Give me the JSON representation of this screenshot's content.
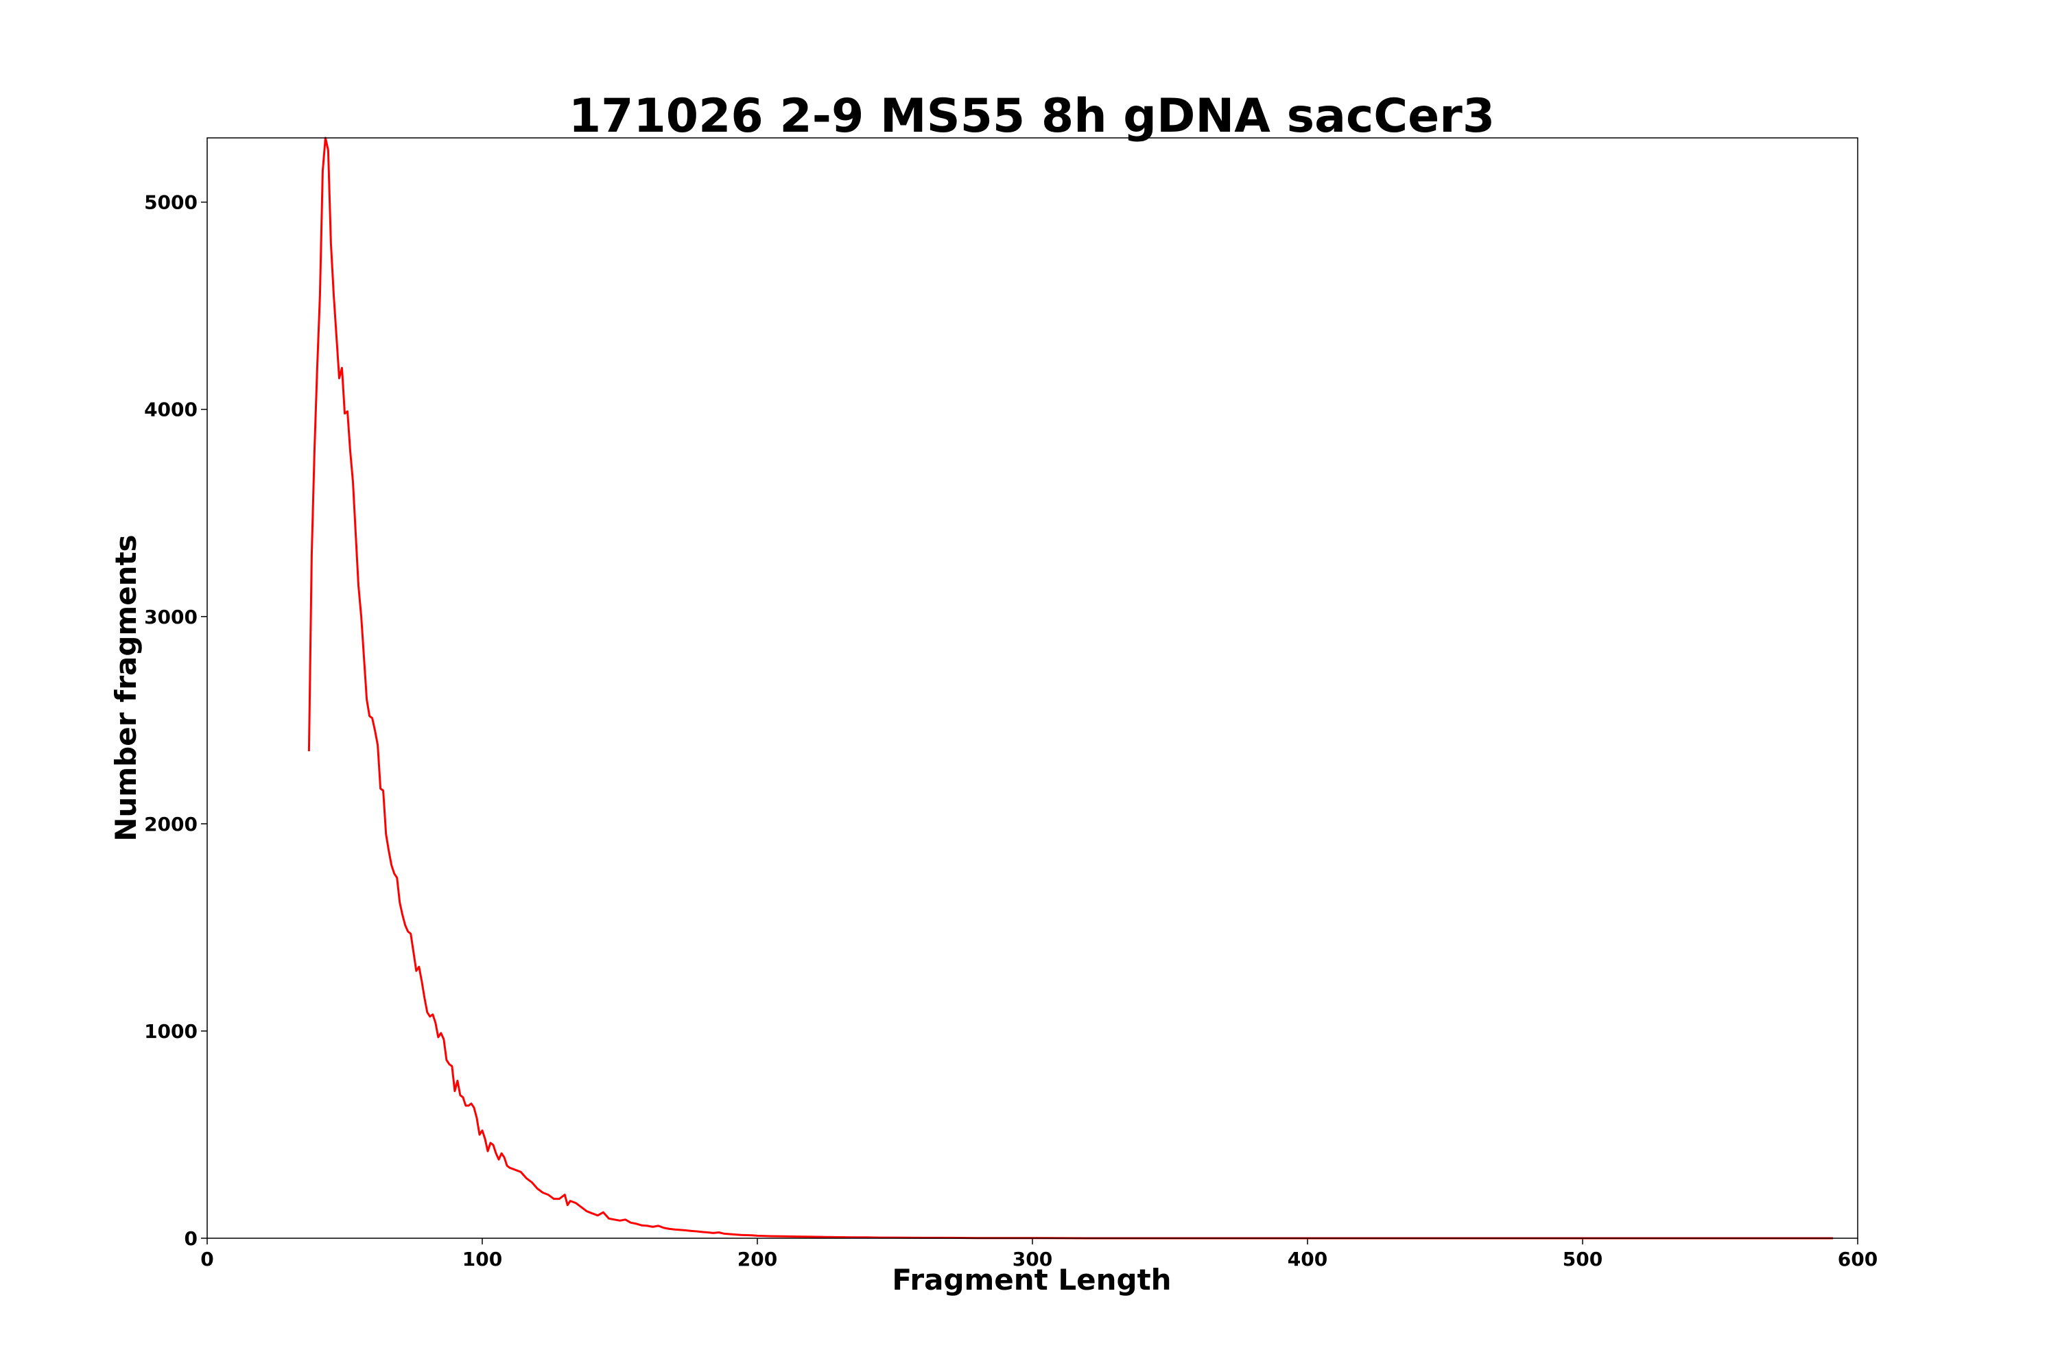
{
  "chart_data": {
    "type": "line",
    "title": "171026 2-9 MS55 8h gDNA sacCer3",
    "xlabel": "Fragment Length",
    "ylabel": "Number fragments",
    "xlim": [
      0,
      600
    ],
    "ylim": [
      0,
      5310
    ],
    "grid": false,
    "x_ticks": [
      0,
      100,
      200,
      300,
      400,
      500,
      600
    ],
    "y_ticks": [
      0,
      1000,
      2000,
      3000,
      4000,
      5000
    ],
    "series": [
      {
        "color": "#ff0000",
        "x": [
          37,
          38,
          39,
          40,
          41,
          42,
          43,
          44,
          45,
          46,
          47,
          48,
          49,
          50,
          51,
          52,
          53,
          54,
          55,
          56,
          57,
          58,
          59,
          60,
          61,
          62,
          63,
          64,
          65,
          66,
          67,
          68,
          69,
          70,
          71,
          72,
          73,
          74,
          75,
          76,
          77,
          78,
          79,
          80,
          81,
          82,
          83,
          84,
          85,
          86,
          87,
          88,
          89,
          90,
          91,
          92,
          93,
          94,
          95,
          96,
          97,
          98,
          99,
          100,
          101,
          102,
          103,
          104,
          105,
          106,
          107,
          108,
          109,
          110,
          112,
          114,
          116,
          118,
          120,
          122,
          124,
          126,
          128,
          130,
          131,
          132,
          134,
          136,
          138,
          140,
          142,
          144,
          145,
          146,
          148,
          150,
          152,
          154,
          156,
          158,
          160,
          162,
          164,
          166,
          168,
          170,
          172,
          174,
          176,
          178,
          180,
          182,
          184,
          186,
          188,
          190,
          192,
          194,
          196,
          198,
          200,
          205,
          210,
          215,
          220,
          225,
          230,
          235,
          240,
          245,
          250,
          260,
          270,
          280,
          290,
          300,
          320,
          350,
          400,
          450,
          500,
          550,
          591
        ],
        "y": [
          2350,
          3300,
          3800,
          4200,
          4550,
          5150,
          5310,
          5250,
          4800,
          4550,
          4350,
          4150,
          4200,
          3980,
          3990,
          3800,
          3650,
          3400,
          3150,
          3000,
          2800,
          2600,
          2520,
          2510,
          2450,
          2380,
          2170,
          2160,
          1950,
          1870,
          1800,
          1760,
          1740,
          1620,
          1560,
          1510,
          1480,
          1470,
          1380,
          1290,
          1310,
          1240,
          1160,
          1090,
          1070,
          1080,
          1040,
          970,
          990,
          960,
          860,
          840,
          830,
          710,
          760,
          690,
          680,
          640,
          640,
          650,
          630,
          580,
          500,
          520,
          480,
          420,
          460,
          450,
          410,
          380,
          410,
          390,
          350,
          340,
          330,
          320,
          290,
          270,
          240,
          220,
          210,
          190,
          190,
          210,
          160,
          180,
          170,
          150,
          130,
          120,
          110,
          125,
          110,
          95,
          90,
          85,
          90,
          75,
          70,
          62,
          60,
          55,
          60,
          50,
          45,
          42,
          40,
          38,
          35,
          33,
          30,
          28,
          25,
          28,
          22,
          20,
          18,
          16,
          15,
          14,
          12,
          10,
          9,
          8,
          7,
          6,
          5,
          4,
          4,
          3,
          3,
          2,
          2,
          1,
          1,
          1,
          0,
          0,
          0,
          0,
          0,
          0,
          0
        ]
      }
    ]
  }
}
